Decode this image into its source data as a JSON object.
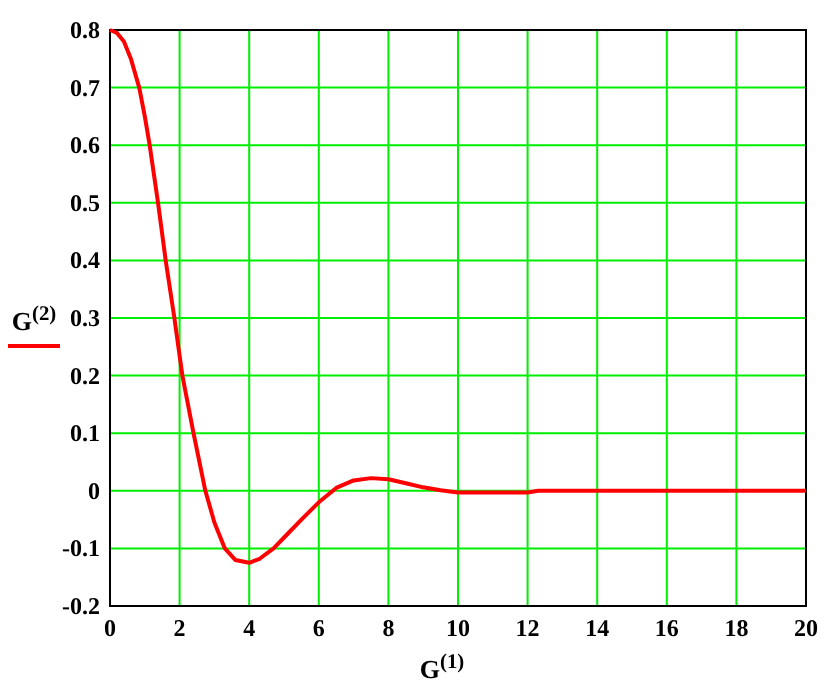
{
  "chart_data": {
    "type": "line",
    "xlabel": "G$^{(1)}$",
    "ylabel": "G$^{(2)}$",
    "series": [
      {
        "color": "#ff0000",
        "x": [
          0,
          0.2,
          0.4,
          0.6,
          0.84,
          1.0,
          1.14,
          1.38,
          1.6,
          1.85,
          2.08,
          2.4,
          2.74,
          3.0,
          3.3,
          3.6,
          4.0,
          4.3,
          4.7,
          5.1,
          5.5,
          6.0,
          6.5,
          7.0,
          7.5,
          8.0,
          8.5,
          9.0,
          9.5,
          10.0,
          11.0,
          12.0,
          12.3,
          14,
          16,
          18,
          20
        ],
        "values": [
          0.8,
          0.795,
          0.78,
          0.75,
          0.7,
          0.65,
          0.6,
          0.5,
          0.4,
          0.3,
          0.2,
          0.1,
          0,
          -0.055,
          -0.1,
          -0.12,
          -0.125,
          -0.118,
          -0.1,
          -0.075,
          -0.05,
          -0.02,
          0.005,
          0.018,
          0.022,
          0.02,
          0.013,
          0.006,
          0.001,
          -0.003,
          -0.003,
          -0.003,
          0,
          0,
          0,
          0,
          0
        ]
      }
    ],
    "xlim": [
      0,
      20
    ],
    "xticks": [
      0,
      2,
      4,
      6,
      8,
      10,
      12,
      14,
      16,
      18,
      20
    ],
    "ylim": [
      -0.2,
      0.8
    ],
    "yticks": [
      -0.2,
      -0.1,
      0,
      0.1,
      0.2,
      0.3,
      0.4,
      0.5,
      0.6,
      0.7,
      0.8
    ],
    "grid": true,
    "marker": "none",
    "line_style": "solid"
  }
}
